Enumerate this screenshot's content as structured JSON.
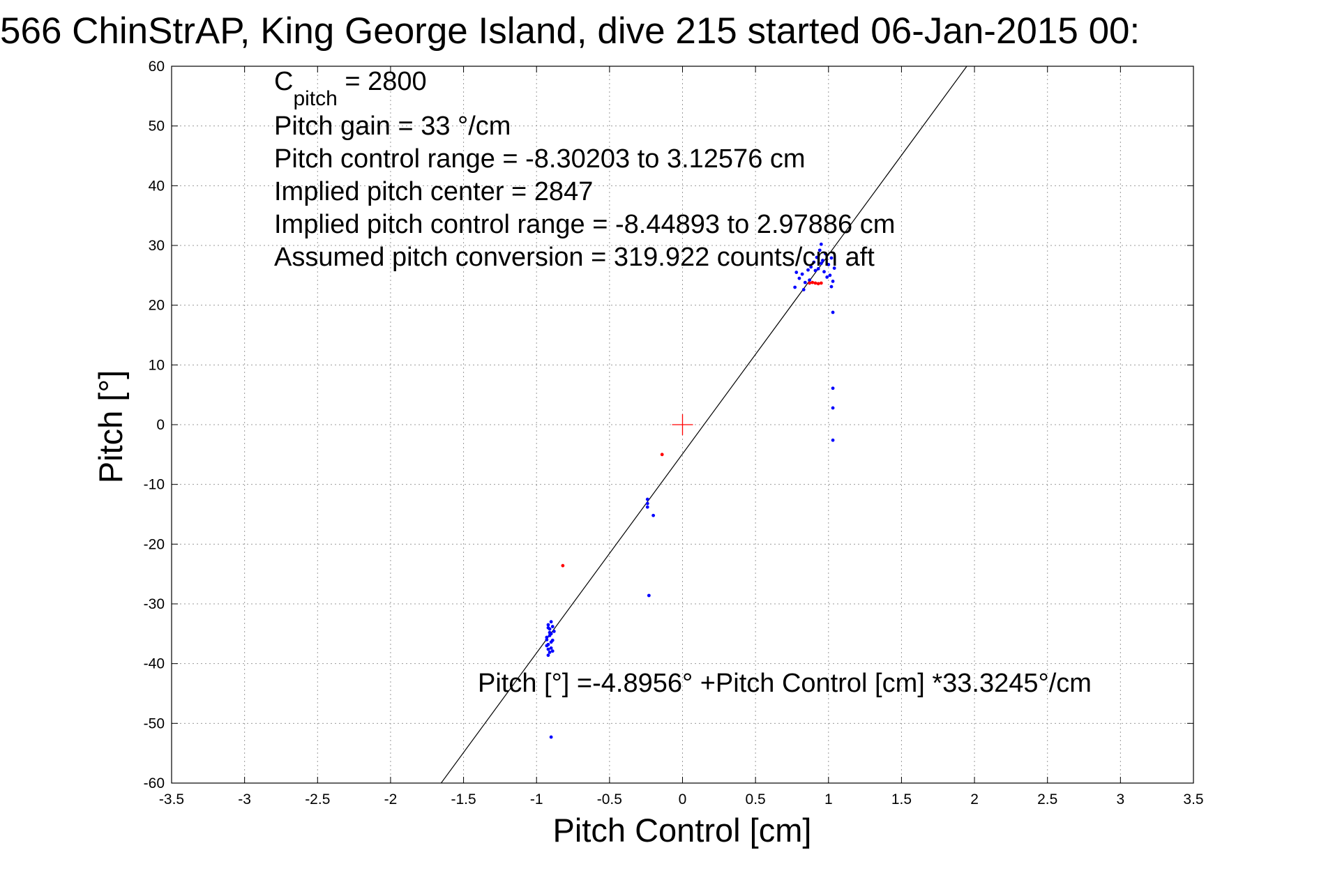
{
  "chart_data": {
    "type": "scatter",
    "title": "566 ChinStrAP, King George Island, dive 215 started 06-Jan-2015 00:",
    "xlabel": "Pitch Control [cm]",
    "ylabel": "Pitch [°]",
    "xlim": [
      -3.5,
      3.5
    ],
    "ylim": [
      -60,
      60
    ],
    "grid": true,
    "x_ticks": [
      -3.5,
      -3,
      -2.5,
      -2,
      -1.5,
      -1,
      -0.5,
      0,
      0.5,
      1,
      1.5,
      2,
      2.5,
      3,
      3.5
    ],
    "x_tick_labels": [
      "-3.5",
      "-3",
      "-2.5",
      "-2",
      "-1.5",
      "-1",
      "-0.5",
      "0",
      "0.5",
      "1",
      "1.5",
      "2",
      "2.5",
      "3",
      "3.5"
    ],
    "y_ticks": [
      60,
      50,
      40,
      30,
      20,
      10,
      0,
      -10,
      -20,
      -30,
      -40,
      -50,
      -60
    ],
    "y_tick_labels": [
      "60",
      "50",
      "40",
      "30",
      "20",
      "10",
      "0",
      "-10",
      "-20",
      "-30",
      "-40",
      "-50",
      "-60"
    ],
    "annotations": {
      "c_pitch_base": "C",
      "c_pitch_sub": "pitch",
      "c_pitch_value": " = 2800",
      "pitch_gain": "Pitch gain = 33 °/cm",
      "pitch_control_range": "Pitch control range = -8.30203 to 3.12576 cm",
      "implied_pitch_center": "Implied pitch center = 2847",
      "implied_pitch_control_range": "Implied pitch control range = -8.44893 to 2.97886 cm",
      "assumed_pitch_conversion": "Assumed pitch conversion = 319.922 counts/cm aft",
      "fit_equation": "Pitch [°] =-4.8956° +Pitch Control [cm] *33.3245°/cm"
    },
    "fit_line": {
      "intercept": -4.8956,
      "slope": 33.3245,
      "color": "#000000"
    },
    "center_marker": {
      "x": 0,
      "y": 0,
      "color": "#ff0000"
    },
    "series": [
      {
        "color": "#0000ff",
        "points": [
          [
            -0.92,
            -33.5
          ],
          [
            -0.91,
            -34.2
          ],
          [
            -0.9,
            -35.0
          ],
          [
            -0.93,
            -35.6
          ],
          [
            -0.89,
            -36.1
          ],
          [
            -0.92,
            -36.8
          ],
          [
            -0.9,
            -37.4
          ],
          [
            -0.91,
            -38.1
          ],
          [
            -0.93,
            -37.0
          ],
          [
            -0.88,
            -34.6
          ],
          [
            -0.92,
            -34.0
          ],
          [
            -0.9,
            -33.0
          ],
          [
            -0.91,
            -35.3
          ],
          [
            -0.89,
            -37.9
          ],
          [
            -0.92,
            -38.6
          ],
          [
            -0.9,
            -36.4
          ],
          [
            -0.93,
            -36.0
          ],
          [
            -0.91,
            -34.8
          ],
          [
            -0.89,
            -33.8
          ],
          [
            -0.92,
            -37.6
          ],
          [
            -0.9,
            -52.3
          ],
          [
            -0.24,
            -12.5
          ],
          [
            -0.24,
            -13.2
          ],
          [
            -0.24,
            -13.8
          ],
          [
            -0.2,
            -15.2
          ],
          [
            -0.23,
            -28.6
          ],
          [
            0.77,
            23.0
          ],
          [
            0.8,
            24.5
          ],
          [
            0.82,
            25.2
          ],
          [
            0.84,
            23.8
          ],
          [
            0.86,
            25.9
          ],
          [
            0.88,
            26.4
          ],
          [
            0.9,
            27.2
          ],
          [
            0.92,
            28.0
          ],
          [
            0.93,
            26.1
          ],
          [
            0.94,
            29.2
          ],
          [
            0.95,
            30.2
          ],
          [
            0.96,
            27.5
          ],
          [
            0.97,
            25.6
          ],
          [
            0.98,
            28.6
          ],
          [
            0.99,
            24.7
          ],
          [
            1.0,
            26.8
          ],
          [
            1.01,
            25.0
          ],
          [
            1.02,
            27.9
          ],
          [
            1.03,
            24.0
          ],
          [
            1.04,
            26.2
          ],
          [
            0.78,
            25.5
          ],
          [
            0.83,
            22.6
          ],
          [
            0.87,
            24.2
          ],
          [
            0.91,
            25.8
          ],
          [
            0.95,
            27.0
          ],
          [
            1.02,
            23.1
          ],
          [
            1.03,
            18.8
          ],
          [
            1.03,
            6.1
          ],
          [
            1.03,
            2.8
          ],
          [
            1.03,
            -2.6
          ]
        ]
      },
      {
        "color": "#ff0000",
        "points": [
          [
            -0.82,
            -23.6
          ],
          [
            -0.14,
            -5.0
          ],
          [
            0.87,
            23.7
          ],
          [
            0.89,
            23.8
          ],
          [
            0.91,
            23.7
          ],
          [
            0.93,
            23.6
          ],
          [
            0.95,
            23.7
          ]
        ]
      }
    ]
  }
}
